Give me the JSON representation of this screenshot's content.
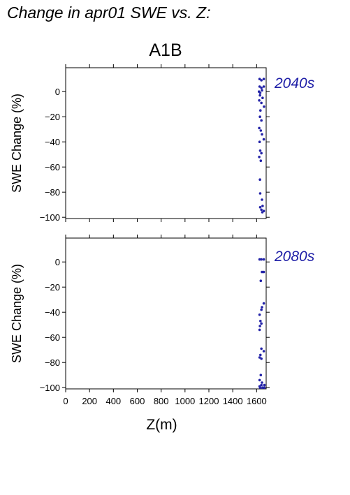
{
  "title": "Change in apr01 SWE vs. Z:",
  "scenario": "A1B",
  "chart_data": [
    {
      "type": "scatter",
      "period_label": "2040s",
      "ylabel": "SWE Change (%)",
      "xlabel": "",
      "xlim": [
        0,
        1680
      ],
      "ylim": [
        -101,
        19
      ],
      "yticks": [
        0,
        -20,
        -40,
        -60,
        -80,
        -100
      ],
      "ytick_labels": [
        "0",
        "−20",
        "−40",
        "−60",
        "−80",
        "−100"
      ],
      "xticks": [
        0,
        200,
        400,
        600,
        800,
        1000,
        1200,
        1400,
        1600
      ],
      "show_xtick_labels": false,
      "grid": false,
      "point_color": "#2323a8",
      "points": [
        [
          1625,
          10
        ],
        [
          1640,
          9
        ],
        [
          1660,
          10
        ],
        [
          1625,
          4
        ],
        [
          1640,
          3
        ],
        [
          1660,
          4
        ],
        [
          1620,
          0
        ],
        [
          1630,
          -1
        ],
        [
          1645,
          1
        ],
        [
          1628,
          -3
        ],
        [
          1650,
          -5
        ],
        [
          1622,
          -7
        ],
        [
          1640,
          -9
        ],
        [
          1662,
          -12
        ],
        [
          1632,
          -15
        ],
        [
          1628,
          -20
        ],
        [
          1640,
          -23
        ],
        [
          1622,
          -29
        ],
        [
          1635,
          -31
        ],
        [
          1645,
          -34
        ],
        [
          1660,
          -38
        ],
        [
          1625,
          -40
        ],
        [
          1630,
          -47
        ],
        [
          1640,
          -49
        ],
        [
          1622,
          -52
        ],
        [
          1635,
          -55
        ],
        [
          1628,
          -70
        ],
        [
          1630,
          -81
        ],
        [
          1645,
          -86
        ],
        [
          1650,
          -91
        ],
        [
          1630,
          -92
        ],
        [
          1640,
          -94
        ],
        [
          1660,
          -95
        ],
        [
          1648,
          -96
        ]
      ]
    },
    {
      "type": "scatter",
      "period_label": "2080s",
      "ylabel": "SWE Change (%)",
      "xlabel": "Z(m)",
      "xlim": [
        0,
        1680
      ],
      "ylim": [
        -101,
        19
      ],
      "yticks": [
        0,
        -20,
        -40,
        -60,
        -80,
        -100
      ],
      "ytick_labels": [
        "0",
        "−20",
        "−40",
        "−60",
        "−80",
        "−100"
      ],
      "xticks": [
        0,
        200,
        400,
        600,
        800,
        1000,
        1200,
        1400,
        1600
      ],
      "xtick_labels": [
        "0",
        "200",
        "400",
        "600",
        "800",
        "1000",
        "1200",
        "1400",
        "1600"
      ],
      "show_xtick_labels": true,
      "grid": false,
      "point_color": "#2323a8",
      "points": [
        [
          1625,
          2
        ],
        [
          1640,
          2
        ],
        [
          1660,
          2
        ],
        [
          1645,
          -8
        ],
        [
          1660,
          -8
        ],
        [
          1635,
          -15
        ],
        [
          1660,
          -33
        ],
        [
          1645,
          -36
        ],
        [
          1640,
          -38
        ],
        [
          1625,
          -42
        ],
        [
          1632,
          -47
        ],
        [
          1640,
          -49
        ],
        [
          1628,
          -51
        ],
        [
          1625,
          -54
        ],
        [
          1640,
          -69
        ],
        [
          1660,
          -71
        ],
        [
          1632,
          -74
        ],
        [
          1625,
          -76
        ],
        [
          1640,
          -77
        ],
        [
          1635,
          -90
        ],
        [
          1625,
          -94
        ],
        [
          1645,
          -96
        ],
        [
          1640,
          -98
        ],
        [
          1665,
          -98
        ],
        [
          1625,
          -99
        ],
        [
          1650,
          -100
        ],
        [
          1665,
          -100
        ],
        [
          1630,
          -100
        ]
      ]
    }
  ]
}
